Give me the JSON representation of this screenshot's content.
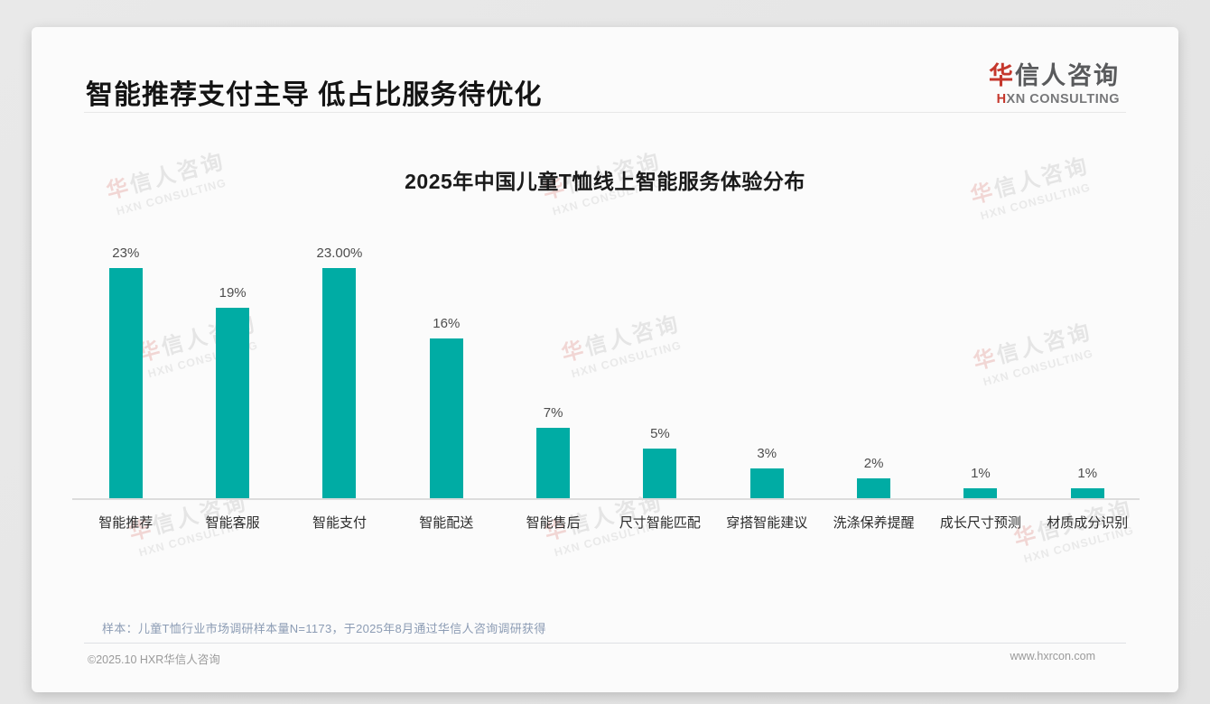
{
  "header": {
    "title": "智能推荐支付主导 低占比服务待优化"
  },
  "logo": {
    "cn_first": "华",
    "cn_rest": "信人咨询",
    "en_first": "H",
    "en_rest": "XN CONSULTING"
  },
  "chart_data": {
    "type": "bar",
    "title": "2025年中国儿童T恤线上智能服务体验分布",
    "categories": [
      "智能推荐",
      "智能客服",
      "智能支付",
      "智能配送",
      "智能售后",
      "尺寸智能匹配",
      "穿搭智能建议",
      "洗涤保养提醒",
      "成长尺寸预测",
      "材质成分识别"
    ],
    "values": [
      23,
      19,
      23,
      16,
      7,
      5,
      3,
      2,
      1,
      1
    ],
    "value_labels": [
      "23%",
      "19%",
      "23.00%",
      "16%",
      "7%",
      "5%",
      "3%",
      "2%",
      "1%",
      "1%"
    ],
    "xlabel": "",
    "ylabel": "",
    "ylim": [
      0,
      25
    ],
    "grid": false,
    "legend": false,
    "bar_color": "#00ACA4"
  },
  "note": "样本：儿童T恤行业市场调研样本量N=1173，于2025年8月通过华信人咨询调研获得",
  "footer": {
    "left": "©2025.10 HXR华信人咨询",
    "right": "www.hxrcon.com"
  },
  "watermark": {
    "line1_first": "华",
    "line1_rest": "信人咨询",
    "line2": "HXN CONSULTING"
  }
}
